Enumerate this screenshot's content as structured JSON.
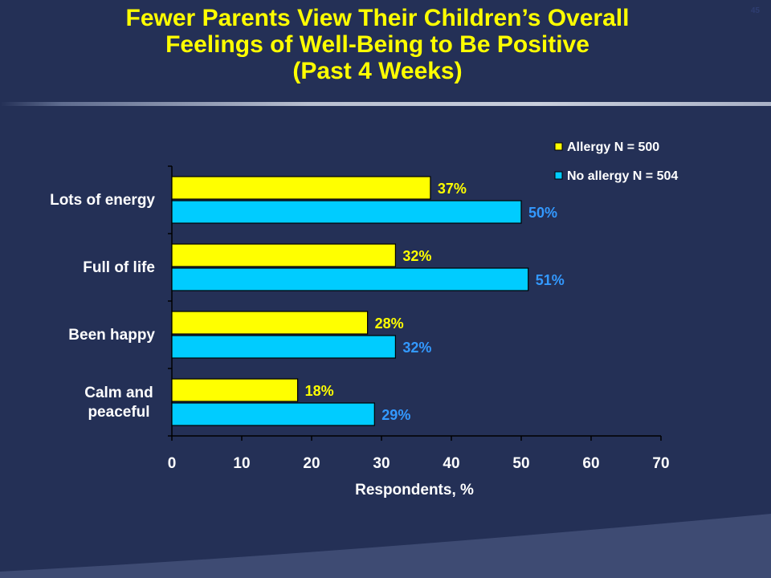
{
  "slide": {
    "title_lines": [
      "Fewer Parents View Their Children’s Overall",
      "Feelings of Well-Being to Be Positive",
      "(Past 4 Weeks)"
    ],
    "page_number": "45"
  },
  "colors": {
    "background": "#243056",
    "title": "#FFFF00",
    "allergy": "#FFFF00",
    "no_allergy": "#00CCFF",
    "no_allergy_label": "#3399FF",
    "text": "#FFFFFF"
  },
  "chart_data": {
    "type": "bar",
    "orientation": "horizontal",
    "categories": [
      "Lots of energy",
      "Full of life",
      "Been happy",
      "Calm and peaceful"
    ],
    "category_lines": [
      [
        "Lots of energy"
      ],
      [
        "Full of life"
      ],
      [
        "Been happy"
      ],
      [
        "Calm and",
        "peaceful"
      ]
    ],
    "series": [
      {
        "name": "Allergy N = 500",
        "values": [
          37,
          32,
          28,
          18
        ],
        "labels": [
          "37%",
          "32%",
          "28%",
          "18%"
        ]
      },
      {
        "name": "No allergy N = 504",
        "values": [
          50,
          51,
          32,
          29
        ],
        "labels": [
          "50%",
          "51%",
          "32%",
          "29%"
        ]
      }
    ],
    "xlabel": "Respondents, %",
    "ylabel": "",
    "xlim": [
      0,
      70
    ],
    "xticks": [
      0,
      10,
      20,
      30,
      40,
      50,
      60,
      70
    ],
    "grid": false,
    "legend_position": "top-right"
  }
}
